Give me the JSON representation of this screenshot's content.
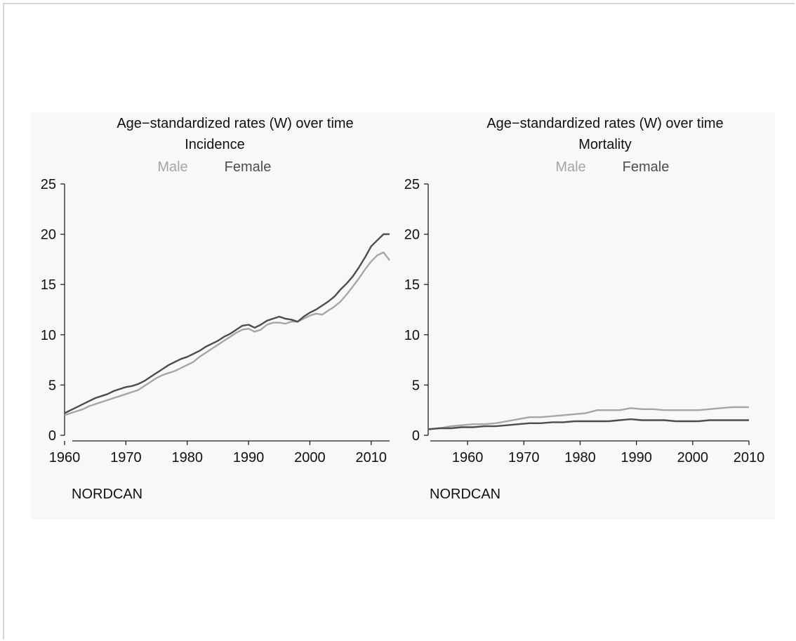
{
  "colors": {
    "male": "#a6a6a6",
    "female": "#4d4d4d",
    "axis": "#222222"
  },
  "chart_data": [
    {
      "type": "line",
      "title": "Age−standardized rates (W) over time",
      "subtitle": "Incidence",
      "legend": [
        "Male",
        "Female"
      ],
      "source": "NORDCAN",
      "ylim": [
        0,
        25
      ],
      "yticks": [
        "0",
        "5",
        "10",
        "15",
        "20",
        "25"
      ],
      "xlim": [
        1960,
        2013
      ],
      "xticks": [
        "1960",
        "1970",
        "1980",
        "1990",
        "2000",
        "2010"
      ],
      "x": [
        1960,
        1961,
        1962,
        1963,
        1964,
        1965,
        1966,
        1967,
        1968,
        1969,
        1970,
        1971,
        1972,
        1973,
        1974,
        1975,
        1976,
        1977,
        1978,
        1979,
        1980,
        1981,
        1982,
        1983,
        1984,
        1985,
        1986,
        1987,
        1988,
        1989,
        1990,
        1991,
        1992,
        1993,
        1994,
        1995,
        1996,
        1997,
        1998,
        1999,
        2000,
        2001,
        2002,
        2003,
        2004,
        2005,
        2006,
        2007,
        2008,
        2009,
        2010,
        2011,
        2012,
        2013
      ],
      "series": [
        {
          "name": "Male",
          "values": [
            2.0,
            2.2,
            2.4,
            2.6,
            2.9,
            3.1,
            3.3,
            3.5,
            3.7,
            3.9,
            4.1,
            4.3,
            4.5,
            4.9,
            5.3,
            5.7,
            6.0,
            6.2,
            6.4,
            6.7,
            7.0,
            7.3,
            7.8,
            8.2,
            8.6,
            9.0,
            9.4,
            9.8,
            10.2,
            10.5,
            10.6,
            10.3,
            10.5,
            11.0,
            11.2,
            11.2,
            11.1,
            11.3,
            11.3,
            11.6,
            11.9,
            12.1,
            12.0,
            12.4,
            12.8,
            13.3,
            14.0,
            14.8,
            15.6,
            16.5,
            17.3,
            17.9,
            18.2,
            17.4
          ]
        },
        {
          "name": "Female",
          "values": [
            2.2,
            2.5,
            2.8,
            3.1,
            3.4,
            3.7,
            3.9,
            4.1,
            4.4,
            4.6,
            4.8,
            4.9,
            5.1,
            5.4,
            5.8,
            6.2,
            6.6,
            7.0,
            7.3,
            7.6,
            7.8,
            8.1,
            8.4,
            8.8,
            9.1,
            9.4,
            9.8,
            10.1,
            10.5,
            10.9,
            11.0,
            10.7,
            11.0,
            11.4,
            11.6,
            11.8,
            11.6,
            11.5,
            11.3,
            11.8,
            12.2,
            12.5,
            12.9,
            13.3,
            13.8,
            14.5,
            15.1,
            15.8,
            16.7,
            17.7,
            18.8,
            19.4,
            20.0,
            20.0
          ]
        }
      ]
    },
    {
      "type": "line",
      "title": "Age−standardized rates (W) over time",
      "subtitle": "Mortality",
      "legend": [
        "Male",
        "Female"
      ],
      "source": "NORDCAN",
      "ylim": [
        0,
        25
      ],
      "yticks": [
        "0",
        "5",
        "10",
        "15",
        "20",
        "25"
      ],
      "xlim": [
        1953,
        2010
      ],
      "xticks": [
        "1960",
        "1970",
        "1980",
        "1990",
        "2000",
        "2010"
      ],
      "x": [
        1953,
        1955,
        1957,
        1959,
        1961,
        1963,
        1965,
        1967,
        1969,
        1971,
        1973,
        1975,
        1977,
        1979,
        1981,
        1983,
        1985,
        1987,
        1989,
        1991,
        1993,
        1995,
        1997,
        1999,
        2001,
        2003,
        2005,
        2007,
        2009,
        2010
      ],
      "series": [
        {
          "name": "Male",
          "values": [
            0.6,
            0.7,
            0.9,
            1.0,
            1.1,
            1.1,
            1.2,
            1.4,
            1.6,
            1.8,
            1.8,
            1.9,
            2.0,
            2.1,
            2.2,
            2.5,
            2.5,
            2.5,
            2.7,
            2.6,
            2.6,
            2.5,
            2.5,
            2.5,
            2.5,
            2.6,
            2.7,
            2.8,
            2.8,
            2.8
          ]
        },
        {
          "name": "Female",
          "values": [
            0.6,
            0.7,
            0.7,
            0.8,
            0.8,
            0.9,
            0.9,
            1.0,
            1.1,
            1.2,
            1.2,
            1.3,
            1.3,
            1.4,
            1.4,
            1.4,
            1.4,
            1.5,
            1.6,
            1.5,
            1.5,
            1.5,
            1.4,
            1.4,
            1.4,
            1.5,
            1.5,
            1.5,
            1.5,
            1.5
          ]
        }
      ]
    }
  ]
}
